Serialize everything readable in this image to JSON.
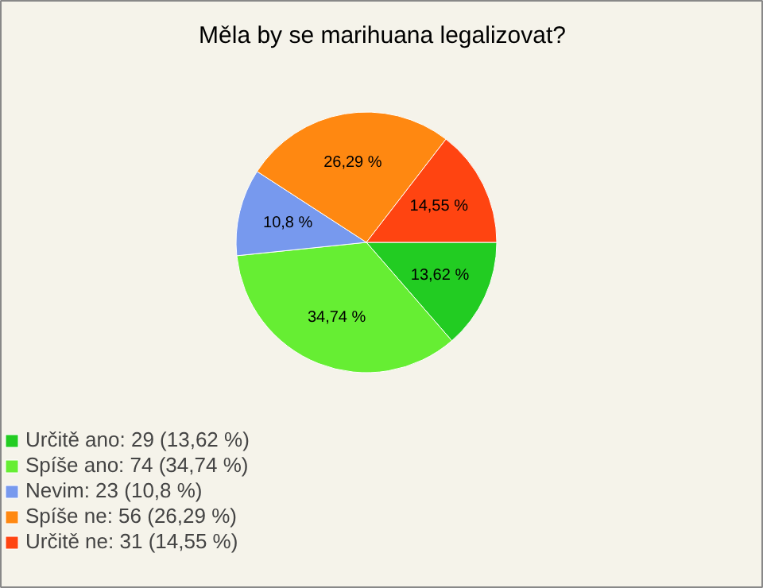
{
  "chart_data": {
    "type": "pie",
    "title": "Měla by se marihuana legalizovat?",
    "categories": [
      "Určitě ano: 29 (13,62 %)",
      "Spíše ano: 74 (34,74 %)",
      "Nevim: 23 (10,8 %)",
      "Spíše ne: 56 (26,29 %)",
      "Určitě ne: 31 (14,55 %)"
    ],
    "values": [
      13.62,
      34.74,
      10.8,
      26.29,
      14.55
    ],
    "colors": [
      "#22cc22",
      "#66ee33",
      "#7799ee",
      "#ff8811",
      "#ff4411"
    ],
    "value_labels": [
      "13,62 %",
      "34,74 %",
      "10,8 %",
      "26,29 %",
      "14,55 %"
    ],
    "legend": "bottom left"
  }
}
